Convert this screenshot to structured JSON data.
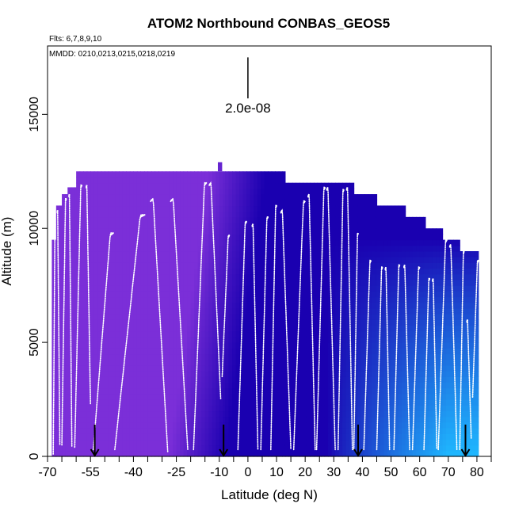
{
  "chart_data": {
    "type": "heatmap",
    "title": "ATOM2 Northbound CONBAS_GEOS5",
    "flights_note": "Flts: 6,7,8,9,10",
    "dates_note": "MMDD: 0210,0213,0215,0218,0219",
    "xlabel": "Latitude (deg N)",
    "ylabel": "Altitude (m)",
    "xlim": [
      -70,
      85
    ],
    "ylim": [
      0,
      18000
    ],
    "x_ticks": [
      -70,
      -55,
      -40,
      -25,
      -10,
      0,
      10,
      20,
      30,
      40,
      50,
      60,
      70,
      80
    ],
    "x_tick_labels": [
      "-70",
      "-55",
      "-40",
      "-25",
      "-10",
      "0",
      "10",
      "20",
      "30",
      "40",
      "50",
      "60",
      "70",
      "80"
    ],
    "x_minor_ticks": [
      -65,
      -60,
      -50,
      -45,
      -35,
      -30,
      -20,
      -15,
      -5,
      5,
      15,
      25,
      35,
      45,
      55,
      65,
      75,
      85
    ],
    "y_ticks": [
      0,
      5000,
      10000,
      15000
    ],
    "y_tick_labels": [
      "0",
      "5000",
      "10000",
      "15000"
    ],
    "scale_bar": {
      "label": "2.0e-08",
      "lat": 0,
      "alt_top": 17500,
      "alt_bottom": 15700
    },
    "color_low": "#7b2fd8",
    "color_mid": "#1a00b0",
    "color_high": "#1fb8ff",
    "field_columns": [
      {
        "lat0": -68.5,
        "lat1": -67,
        "top": 9500
      },
      {
        "lat0": -67,
        "lat1": -65,
        "top": 11000
      },
      {
        "lat0": -65,
        "lat1": -63,
        "top": 11500
      },
      {
        "lat0": -63,
        "lat1": -60,
        "top": 11800
      },
      {
        "lat0": -60,
        "lat1": -55,
        "top": 12500
      },
      {
        "lat0": -55,
        "lat1": -10,
        "top": 12500
      },
      {
        "lat0": -10,
        "lat1": -8,
        "top": 12500
      },
      {
        "lat0": -8,
        "lat1": 13,
        "top": 12500
      },
      {
        "lat0": 13,
        "lat1": 37,
        "top": 12000
      },
      {
        "lat0": 37,
        "lat1": 45,
        "top": 11500
      },
      {
        "lat0": 45,
        "lat1": 55,
        "top": 11000
      },
      {
        "lat0": 55,
        "lat1": 62,
        "top": 10500
      },
      {
        "lat0": 62,
        "lat1": 68,
        "top": 10000
      },
      {
        "lat0": 68,
        "lat1": 74,
        "top": 9500
      },
      {
        "lat0": 74,
        "lat1": 80.5,
        "top": 9000
      }
    ],
    "top_notch": {
      "lat0": -10.5,
      "lat1": -9,
      "bottom": 12500,
      "top": 12900
    },
    "flight_profiles": [
      {
        "lat0": -68,
        "lat1": -67.3,
        "alt_start": 100,
        "alt_end": 10200
      },
      {
        "lat0": -66.6,
        "lat1": -65.7,
        "alt_start": 10800,
        "alt_end": 500
      },
      {
        "lat0": -65,
        "lat1": -63.5,
        "alt_start": 500,
        "alt_end": 11300
      },
      {
        "lat0": -62.5,
        "lat1": -61.5,
        "alt_start": 11500,
        "alt_end": 400
      },
      {
        "lat0": -60.5,
        "lat1": -58,
        "alt_start": 400,
        "alt_end": 11900
      },
      {
        "lat0": -56.5,
        "lat1": -55,
        "alt_start": 11900,
        "alt_end": 2300
      },
      {
        "lat0": -54,
        "lat1": -47,
        "alt_start": 300,
        "alt_end": 9800
      },
      {
        "lat0": -46.5,
        "lat1": -36,
        "alt_start": 300,
        "alt_end": 10600
      },
      {
        "lat0": -34,
        "lat1": -28,
        "alt_start": 11300,
        "alt_end": 200
      },
      {
        "lat0": -27,
        "lat1": -21,
        "alt_start": 11300,
        "alt_end": 300
      },
      {
        "lat0": -19,
        "lat1": -14.5,
        "alt_start": 300,
        "alt_end": 12000
      },
      {
        "lat0": -13.5,
        "lat1": -9.5,
        "alt_start": 12000,
        "alt_end": 2500
      },
      {
        "lat0": -9,
        "lat1": -6.5,
        "alt_start": 3500,
        "alt_end": 9700
      },
      {
        "lat0": -3.5,
        "lat1": -0.5,
        "alt_start": 300,
        "alt_end": 10300
      },
      {
        "lat0": 1.5,
        "lat1": 3.5,
        "alt_start": 10200,
        "alt_end": 300
      },
      {
        "lat0": 4.5,
        "lat1": 7,
        "alt_start": 300,
        "alt_end": 10500
      },
      {
        "lat0": 8,
        "lat1": 10,
        "alt_start": 300,
        "alt_end": 11000
      },
      {
        "lat0": 11.5,
        "lat1": 15,
        "alt_start": 10800,
        "alt_end": 300
      },
      {
        "lat0": 16,
        "lat1": 20,
        "alt_start": 300,
        "alt_end": 11200
      },
      {
        "lat0": 21,
        "lat1": 23.5,
        "alt_start": 11500,
        "alt_end": 300
      },
      {
        "lat0": 24,
        "lat1": 27,
        "alt_start": 300,
        "alt_end": 11800
      },
      {
        "lat0": 27.5,
        "lat1": 30.5,
        "alt_start": 11800,
        "alt_end": 300
      },
      {
        "lat0": 31.5,
        "lat1": 33.5,
        "alt_start": 300,
        "alt_end": 11700
      },
      {
        "lat0": 34.5,
        "lat1": 36.5,
        "alt_start": 11800,
        "alt_end": 300
      },
      {
        "lat0": 37,
        "lat1": 38.5,
        "alt_start": 300,
        "alt_end": 9800
      },
      {
        "lat0": 40.5,
        "lat1": 43,
        "alt_start": 300,
        "alt_end": 8600
      },
      {
        "lat0": 45,
        "lat1": 47,
        "alt_start": 300,
        "alt_end": 8300
      },
      {
        "lat0": 48,
        "lat1": 49.5,
        "alt_start": 8300,
        "alt_end": 300
      },
      {
        "lat0": 51,
        "lat1": 53,
        "alt_start": 300,
        "alt_end": 8400
      },
      {
        "lat0": 54.5,
        "lat1": 56.5,
        "alt_start": 8400,
        "alt_end": 300
      },
      {
        "lat0": 57.5,
        "lat1": 60,
        "alt_start": 300,
        "alt_end": 8300
      },
      {
        "lat0": 61.5,
        "lat1": 63.5,
        "alt_start": 300,
        "alt_end": 7800
      },
      {
        "lat0": 64.5,
        "lat1": 66,
        "alt_start": 7800,
        "alt_end": 300
      },
      {
        "lat0": 66.5,
        "lat1": 69.5,
        "alt_start": 300,
        "alt_end": 9500
      },
      {
        "lat0": 70.5,
        "lat1": 73,
        "alt_start": 9300,
        "alt_end": 300
      },
      {
        "lat0": 74,
        "lat1": 75.5,
        "alt_start": 300,
        "alt_end": 9000
      },
      {
        "lat0": 76.5,
        "lat1": 78,
        "alt_start": 6000,
        "alt_end": 800
      },
      {
        "lat0": 78.5,
        "lat1": 80.5,
        "alt_start": 2600,
        "alt_end": 8600
      }
    ],
    "arrows": [
      {
        "lat": -53.5,
        "alt_top": 700
      },
      {
        "lat": -8.5,
        "alt_top": 700
      },
      {
        "lat": 38.5,
        "alt_top": 700
      },
      {
        "lat": 76,
        "alt_top": 700
      }
    ]
  }
}
